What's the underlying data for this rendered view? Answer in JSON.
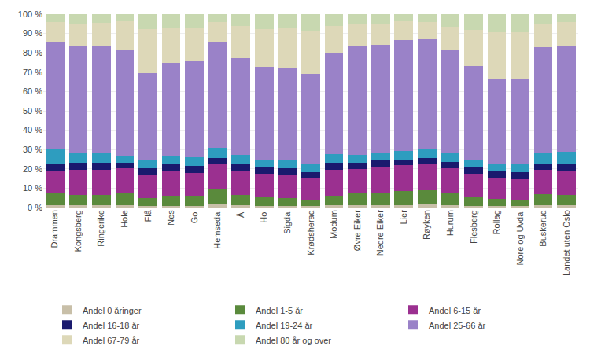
{
  "chart_data": {
    "type": "bar",
    "stacked": true,
    "categories": [
      "Drammen",
      "Kongsberg",
      "Ringerike",
      "Hole",
      "Flå",
      "Nes",
      "Gol",
      "Hemsedal",
      "Ål",
      "Hol",
      "Sigdal",
      "Krødsherad",
      "Modum",
      "Øvre Eiker",
      "Nedre Eiker",
      "Lier",
      "Røyken",
      "Hurum",
      "Flesberg",
      "Rollag",
      "Nore og Uvdal",
      "Buskerud",
      "Landet uten Oslo"
    ],
    "series": [
      {
        "name": "Andel 0 åringer",
        "color": "#c8bfa8",
        "values": [
          1.3,
          1.2,
          1.2,
          1.3,
          0.9,
          1.0,
          1.0,
          1.8,
          1.1,
          0.9,
          0.8,
          0.7,
          1.1,
          1.3,
          1.3,
          1.4,
          1.5,
          1.2,
          1.0,
          0.8,
          0.7,
          1.2,
          1.1
        ]
      },
      {
        "name": "Andel 1-5 år",
        "color": "#5a8a3c",
        "values": [
          6.0,
          5.5,
          5.5,
          6.5,
          4.0,
          5.0,
          5.0,
          8.0,
          5.5,
          4.5,
          4.0,
          3.5,
          5.0,
          6.0,
          6.5,
          7.0,
          7.5,
          6.0,
          4.5,
          3.5,
          3.5,
          5.8,
          5.5
        ]
      },
      {
        "name": "Andel 6-15 år",
        "color": "#9b3090",
        "values": [
          11.5,
          13.0,
          13.0,
          12.5,
          12.0,
          13.0,
          12.0,
          13.0,
          12.5,
          12.0,
          12.0,
          11.0,
          13.5,
          12.5,
          13.0,
          13.5,
          13.5,
          13.0,
          12.0,
          11.0,
          10.5,
          12.5,
          12.5
        ]
      },
      {
        "name": "Andel 16-18 år",
        "color": "#1a1a6e",
        "values": [
          3.5,
          3.5,
          3.5,
          3.0,
          3.5,
          3.5,
          3.5,
          3.0,
          3.5,
          3.5,
          3.5,
          3.0,
          3.5,
          3.5,
          3.5,
          3.0,
          3.0,
          3.5,
          3.5,
          3.5,
          3.5,
          3.3,
          3.3
        ]
      },
      {
        "name": "Andel 19-24 år",
        "color": "#2e9dbf",
        "values": [
          8.0,
          5.0,
          5.0,
          3.5,
          4.0,
          4.5,
          4.5,
          5.0,
          4.5,
          4.0,
          4.0,
          4.0,
          4.5,
          4.0,
          4.0,
          4.5,
          5.0,
          4.5,
          4.0,
          4.0,
          4.0,
          5.5,
          6.5
        ]
      },
      {
        "name": "Andel 25-66 år",
        "color": "#9a82c8",
        "values": [
          55.0,
          55.0,
          55.0,
          55.0,
          45.0,
          48.0,
          50.0,
          55.0,
          50.0,
          48.0,
          48.0,
          47.0,
          52.0,
          56.0,
          56.0,
          57.0,
          57.0,
          53.0,
          48.0,
          44.0,
          44.0,
          54.5,
          55.0
        ]
      },
      {
        "name": "Andel 67-79 år",
        "color": "#ddd8b8",
        "values": [
          10.5,
          12.0,
          12.5,
          14.5,
          23.0,
          18.0,
          16.5,
          10.0,
          17.0,
          19.5,
          20.5,
          22.0,
          14.5,
          11.5,
          11.0,
          10.0,
          8.5,
          12.5,
          19.0,
          24.0,
          24.5,
          12.5,
          12.0
        ]
      },
      {
        "name": "Andel 80 år og over",
        "color": "#c8d8b0",
        "values": [
          4.2,
          4.8,
          4.3,
          3.7,
          7.6,
          7.0,
          7.5,
          4.2,
          5.9,
          7.6,
          7.2,
          8.8,
          5.9,
          5.2,
          4.7,
          3.6,
          4.0,
          6.3,
          8.0,
          9.2,
          9.3,
          4.7,
          4.1
        ]
      }
    ],
    "ylim": [
      0,
      100
    ],
    "yticks": [
      {
        "value": 0,
        "label": "0 %"
      },
      {
        "value": 10,
        "label": "10 %"
      },
      {
        "value": 20,
        "label": "20 %"
      },
      {
        "value": 30,
        "label": "30 %"
      },
      {
        "value": 40,
        "label": "40 %"
      },
      {
        "value": 50,
        "label": "50 %"
      },
      {
        "value": 60,
        "label": "60 %"
      },
      {
        "value": 70,
        "label": "70 %"
      },
      {
        "value": 80,
        "label": "80 %"
      },
      {
        "value": 90,
        "label": "90 %"
      },
      {
        "value": 100,
        "label": "100 %"
      }
    ],
    "grid": true,
    "legend": "bottom"
  }
}
